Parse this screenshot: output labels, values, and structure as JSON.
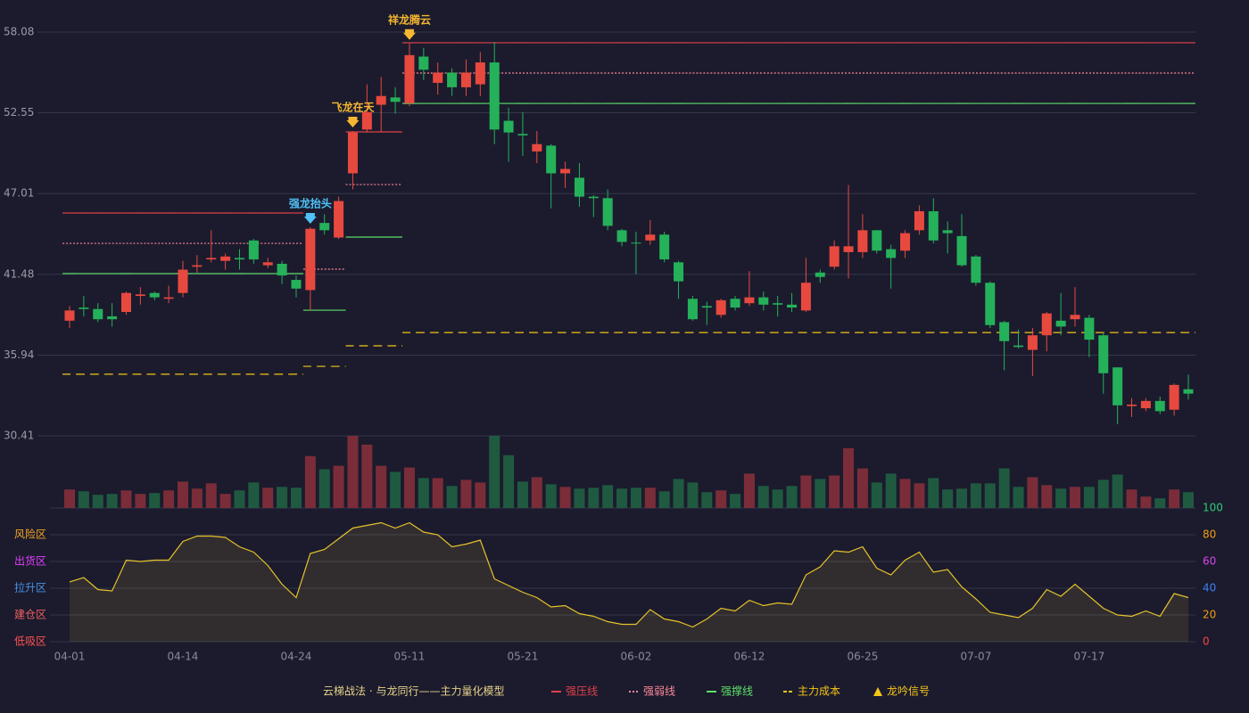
{
  "chart_data": {
    "type": "candlestick",
    "categories": [
      "04-01",
      null,
      null,
      null,
      null,
      null,
      null,
      null,
      "04-14",
      null,
      null,
      null,
      null,
      null,
      null,
      null,
      "04-24",
      null,
      null,
      null,
      null,
      null,
      null,
      null,
      "05-11",
      null,
      null,
      null,
      null,
      null,
      null,
      null,
      "05-21",
      null,
      null,
      null,
      null,
      null,
      null,
      null,
      "06-02",
      null,
      null,
      null,
      null,
      null,
      null,
      null,
      "06-12",
      null,
      null,
      null,
      null,
      null,
      null,
      null,
      "06-25",
      null,
      null,
      null,
      null,
      null,
      null,
      null,
      "07-07",
      null,
      null,
      null,
      null,
      null,
      null,
      null,
      "07-17",
      null,
      null,
      null,
      null,
      null,
      null,
      null
    ],
    "open": [
      38.3,
      39.2,
      39.1,
      38.6,
      38.9,
      40.0,
      40.2,
      39.8,
      40.2,
      42.0,
      42.5,
      42.4,
      42.6,
      43.8,
      42.1,
      42.2,
      41.1,
      40.4,
      45.0,
      44.0,
      48.4,
      51.4,
      53.1,
      53.6,
      53.2,
      56.4,
      54.6,
      55.3,
      54.3,
      54.5,
      56.0,
      52.0,
      51.1,
      49.9,
      50.3,
      48.4,
      48.1,
      46.8,
      46.7,
      44.5,
      43.65,
      43.8,
      44.2,
      42.3,
      39.8,
      39.3,
      38.7,
      39.8,
      39.5,
      39.9,
      39.5,
      39.4,
      39.0,
      41.6,
      42.0,
      43.0,
      43.0,
      44.5,
      43.2,
      43.1,
      44.5,
      45.8,
      44.5,
      44.1,
      42.7,
      40.9,
      38.2,
      36.6,
      36.3,
      37.3,
      38.3,
      38.4,
      38.5,
      37.3,
      35.1,
      32.45,
      32.3,
      32.8,
      32.2,
      33.6
    ],
    "high": [
      39.3,
      40.0,
      39.5,
      39.5,
      40.3,
      40.6,
      40.3,
      40.7,
      42.4,
      42.8,
      44.5,
      42.9,
      43.2,
      43.9,
      42.6,
      42.4,
      41.4,
      44.7,
      45.6,
      46.8,
      51.3,
      54.5,
      55.0,
      54.3,
      57.3,
      57.0,
      56.0,
      55.6,
      56.2,
      56.7,
      57.4,
      52.9,
      52.6,
      51.3,
      50.4,
      49.2,
      49.1,
      46.9,
      47.3,
      44.6,
      44.4,
      45.2,
      44.4,
      42.4,
      40.0,
      39.6,
      39.8,
      40.0,
      41.7,
      40.3,
      40.0,
      40.2,
      42.6,
      41.8,
      43.8,
      47.6,
      45.6,
      44.5,
      43.5,
      44.5,
      46.2,
      46.7,
      45.1,
      45.6,
      42.8,
      41.0,
      38.3,
      37.7,
      37.8,
      38.9,
      40.2,
      40.6,
      38.7,
      37.5,
      35.1,
      33.0,
      33.0,
      33.1,
      34.0,
      34.6
    ],
    "low": [
      37.8,
      38.6,
      38.2,
      37.9,
      38.7,
      39.4,
      39.7,
      39.5,
      39.9,
      41.6,
      42.3,
      41.8,
      41.8,
      42.2,
      41.9,
      40.8,
      39.9,
      39.0,
      44.2,
      43.9,
      47.3,
      51.2,
      51.2,
      52.5,
      53.0,
      54.8,
      53.8,
      53.7,
      53.7,
      53.7,
      50.4,
      49.2,
      49.6,
      49.1,
      46.0,
      47.4,
      46.1,
      45.4,
      44.5,
      43.4,
      41.5,
      43.5,
      42.3,
      39.8,
      38.3,
      38.0,
      38.5,
      39.0,
      39.3,
      39.0,
      38.6,
      38.9,
      38.9,
      40.9,
      41.8,
      41.2,
      42.6,
      42.9,
      40.5,
      42.6,
      44.2,
      43.6,
      42.9,
      42.0,
      40.7,
      37.8,
      34.9,
      36.4,
      34.5,
      36.2,
      37.3,
      37.9,
      35.8,
      33.3,
      31.2,
      31.7,
      32.1,
      31.9,
      31.8,
      32.9
    ],
    "close": [
      39.0,
      39.1,
      38.4,
      38.4,
      40.2,
      40.1,
      39.9,
      39.9,
      41.8,
      42.1,
      42.6,
      42.7,
      42.5,
      42.5,
      42.3,
      41.4,
      40.5,
      44.6,
      44.5,
      46.5,
      51.2,
      52.6,
      53.7,
      53.3,
      56.5,
      55.5,
      55.3,
      54.3,
      55.3,
      56.0,
      51.4,
      51.2,
      51.0,
      50.4,
      48.4,
      48.7,
      46.8,
      46.7,
      44.8,
      43.7,
      43.6,
      44.2,
      42.5,
      41.0,
      38.4,
      39.2,
      39.7,
      39.2,
      39.9,
      39.4,
      39.4,
      39.2,
      40.9,
      41.3,
      43.4,
      43.4,
      44.5,
      43.1,
      42.6,
      44.3,
      45.8,
      43.8,
      44.3,
      42.1,
      40.9,
      38.0,
      36.9,
      36.5,
      37.3,
      38.8,
      37.9,
      38.7,
      37.0,
      34.7,
      32.5,
      32.55,
      32.8,
      32.1,
      33.9,
      33.3
    ],
    "up_color": "#e8493f",
    "down_color": "#25b15a",
    "ylim": [
      30.41,
      58.08
    ],
    "yticks": [
      30.41,
      35.94,
      41.48,
      47.01,
      52.55,
      58.08
    ],
    "grid": true,
    "levels": [
      {
        "name": "强压线",
        "color": "#e0404a",
        "style": "solid",
        "values": [
          45.68,
          45.68,
          45.68,
          45.68,
          45.68,
          45.68,
          45.68,
          45.68,
          45.68,
          45.68,
          45.68,
          45.68,
          45.68,
          45.68,
          45.68,
          45.68,
          45.68,
          null,
          null,
          null,
          51.24,
          51.24,
          51.24,
          51.24,
          57.35,
          57.35,
          57.35,
          57.35,
          57.35,
          57.35,
          57.35,
          57.35,
          57.35,
          57.35,
          57.35,
          57.35,
          57.35,
          57.35,
          57.35,
          57.35,
          57.35,
          57.35,
          57.35,
          57.35,
          57.35,
          57.35,
          57.35,
          57.35,
          57.35,
          57.35,
          57.35,
          57.35,
          57.35,
          57.35,
          57.35,
          57.35,
          57.35,
          57.35,
          57.35,
          57.35,
          57.35,
          57.35,
          57.35,
          57.35,
          57.35,
          57.35,
          57.35,
          57.35,
          57.35,
          57.35,
          57.35,
          57.35,
          57.35,
          57.35,
          57.35,
          57.35,
          57.35,
          57.35,
          57.35,
          57.35
        ]
      },
      {
        "name": "强弱线",
        "color": "#ff8a9a",
        "style": "dotted",
        "values": [
          43.6,
          43.6,
          43.6,
          43.6,
          43.6,
          43.6,
          43.6,
          43.6,
          43.6,
          43.6,
          43.6,
          43.6,
          43.6,
          43.6,
          43.6,
          43.6,
          43.6,
          41.83,
          41.83,
          41.83,
          47.63,
          47.63,
          47.63,
          47.63,
          55.27,
          55.27,
          55.27,
          55.27,
          55.27,
          55.27,
          55.27,
          55.27,
          55.27,
          55.27,
          55.27,
          55.27,
          55.27,
          55.27,
          55.27,
          55.27,
          55.27,
          55.27,
          55.27,
          55.27,
          55.27,
          55.27,
          55.27,
          55.27,
          55.27,
          55.27,
          55.27,
          55.27,
          55.27,
          55.27,
          55.27,
          55.27,
          55.27,
          55.27,
          55.27,
          55.27,
          55.27,
          55.27,
          55.27,
          55.27,
          55.27,
          55.27,
          55.27,
          55.27,
          55.27,
          55.27,
          55.27,
          55.27,
          55.27,
          55.27,
          55.27,
          55.27,
          55.27,
          55.27,
          55.27,
          55.27
        ]
      },
      {
        "name": "强撑线",
        "color": "#5ee06a",
        "style": "solid",
        "values": [
          41.53,
          41.53,
          41.53,
          41.53,
          41.53,
          41.53,
          41.53,
          41.53,
          41.53,
          41.53,
          41.53,
          41.53,
          41.53,
          41.53,
          41.53,
          41.53,
          41.53,
          39.02,
          39.02,
          39.02,
          44.03,
          44.03,
          44.03,
          44.03,
          53.19,
          53.19,
          53.19,
          53.19,
          53.19,
          53.19,
          53.19,
          53.19,
          53.19,
          53.19,
          53.19,
          53.19,
          53.19,
          53.19,
          53.19,
          53.19,
          53.19,
          53.19,
          53.19,
          53.19,
          53.19,
          53.19,
          53.19,
          53.19,
          53.19,
          53.19,
          53.19,
          53.19,
          53.19,
          53.19,
          53.19,
          53.19,
          53.19,
          53.19,
          53.19,
          53.19,
          53.19,
          53.19,
          53.19,
          53.19,
          53.19,
          53.19,
          53.19,
          53.19,
          53.19,
          53.19,
          53.19,
          53.19,
          53.19,
          53.19,
          53.19,
          53.19,
          53.19,
          53.19,
          53.19,
          53.19
        ]
      },
      {
        "name": "主力成本",
        "color": "#f5c518",
        "style": "dashed",
        "values": [
          34.63,
          34.63,
          34.63,
          34.63,
          34.63,
          34.63,
          34.63,
          34.63,
          34.63,
          34.63,
          34.63,
          34.63,
          34.63,
          34.63,
          34.63,
          34.63,
          34.63,
          35.17,
          35.17,
          35.17,
          36.58,
          36.58,
          36.58,
          36.58,
          37.49,
          37.49,
          37.49,
          37.49,
          37.49,
          37.49,
          37.49,
          37.49,
          37.49,
          37.49,
          37.49,
          37.49,
          37.49,
          37.49,
          37.49,
          37.49,
          37.49,
          37.49,
          37.49,
          37.49,
          37.49,
          37.49,
          37.49,
          37.49,
          37.49,
          37.49,
          37.49,
          37.49,
          37.49,
          37.49,
          37.49,
          37.49,
          37.49,
          37.49,
          37.49,
          37.49,
          37.49,
          37.49,
          37.49,
          37.49,
          37.49,
          37.49,
          37.49,
          37.49,
          37.49,
          37.49,
          37.49,
          37.49,
          37.49,
          37.49,
          37.49,
          37.49,
          37.49,
          37.49,
          37.49,
          37.49
        ]
      }
    ],
    "signals": [
      {
        "index": 17,
        "label": "强龙抬头",
        "color": "#4fc3f7"
      },
      {
        "index": 20,
        "label": "飞龙在天",
        "color": "#f5b731"
      },
      {
        "index": 24,
        "label": "祥龙腾云",
        "color": "#f5b731"
      }
    ],
    "signal_legend": "龙吟信号",
    "signal_legend_color": "#f5c518",
    "volume": [
      21,
      19,
      15,
      16,
      20,
      16,
      17,
      20,
      30,
      22,
      28,
      16,
      20,
      29,
      23,
      24,
      23,
      59,
      44,
      48,
      82,
      72,
      48,
      41,
      46,
      34,
      34,
      25,
      32,
      29,
      82,
      60,
      30,
      35,
      27,
      24,
      22,
      23,
      26,
      22,
      23,
      23,
      19,
      33,
      29,
      18,
      20,
      16,
      39,
      25,
      21,
      25,
      37,
      33,
      37,
      68,
      45,
      29,
      39,
      33,
      28,
      34,
      21,
      22,
      28,
      28,
      45,
      24,
      35,
      26,
      22,
      24,
      24,
      32,
      38,
      21,
      13,
      11,
      21,
      18
    ],
    "volume_up_color": "#7a2d38",
    "volume_down_color": "#1f5a40",
    "oscillator": {
      "values": [
        44.7,
        48,
        39,
        38,
        61,
        60,
        61,
        61,
        75,
        79,
        79,
        78,
        71,
        67,
        57,
        43,
        33,
        66,
        69,
        77,
        85,
        87,
        89,
        85,
        89,
        82,
        80,
        71,
        73,
        76,
        47,
        42,
        37,
        33,
        26,
        27,
        21,
        19,
        15,
        13,
        13,
        24,
        17,
        15,
        11,
        17,
        25,
        23,
        31,
        27,
        29,
        28,
        50,
        56,
        68,
        67,
        71,
        55,
        50,
        61,
        67,
        52,
        54,
        41,
        32,
        22,
        20,
        18,
        25,
        39,
        34,
        43,
        34,
        25,
        20,
        19,
        23,
        19,
        36,
        33
      ],
      "color": "#e6c229",
      "ylim": [
        0,
        100
      ],
      "yticks": [
        0,
        20,
        40,
        60,
        80,
        100
      ],
      "ytick_colors": [
        "#ef4444",
        "#f39c12",
        "#3b82f6",
        "#d946ef",
        "#f39c12",
        "#2ecc71"
      ],
      "zones": [
        {
          "value": 80,
          "label": "风险区",
          "color": "#f5a623"
        },
        {
          "value": 60,
          "label": "出货区",
          "color": "#e040fb"
        },
        {
          "value": 40,
          "label": "拉升区",
          "color": "#4a90e2"
        },
        {
          "value": 20,
          "label": "建仓区",
          "color": "#f06060"
        },
        {
          "value": 0,
          "label": "低吸区",
          "color": "#ff5252"
        }
      ]
    },
    "legend_title": "云梯战法 · 与龙同行——主力量化模型"
  }
}
